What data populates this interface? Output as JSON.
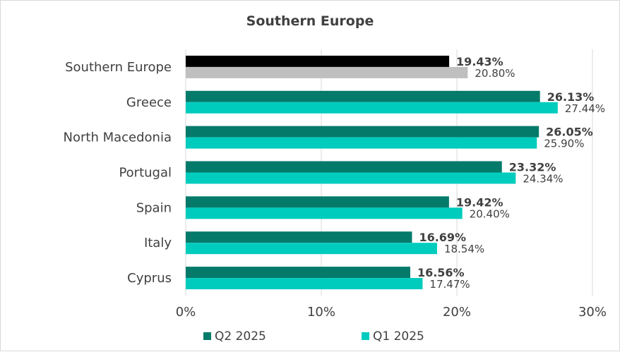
{
  "chart_data": {
    "type": "bar",
    "orientation": "horizontal",
    "title": "Southern Europe",
    "categories": [
      "Southern Europe",
      "Greece",
      "North Macedonia",
      "Portugal",
      "Spain",
      "Italy",
      "Cyprus"
    ],
    "series": [
      {
        "name": "Q2 2025",
        "color": "#047a6a",
        "values": [
          19.43,
          26.13,
          26.05,
          23.32,
          19.42,
          16.69,
          16.56
        ],
        "labels": [
          "19.43%",
          "26.13%",
          "26.05%",
          "23.32%",
          "19.42%",
          "16.69%",
          "16.56%"
        ]
      },
      {
        "name": "Q1 2025",
        "color": "#00ccbe",
        "values": [
          20.8,
          27.44,
          25.9,
          24.34,
          20.4,
          18.54,
          17.47
        ],
        "labels": [
          "20.80%",
          "27.44%",
          "25.90%",
          "24.34%",
          "20.40%",
          "18.54%",
          "17.47%"
        ]
      }
    ],
    "highlight": {
      "category": "Southern Europe",
      "colors": [
        "#000000",
        "#bfbfbf"
      ]
    },
    "xlim": [
      0,
      30
    ],
    "xticks": [
      0,
      10,
      20,
      30
    ],
    "xtick_labels": [
      "0%",
      "10%",
      "20%",
      "30%"
    ],
    "grid": "vertical",
    "legend": "bottom"
  }
}
